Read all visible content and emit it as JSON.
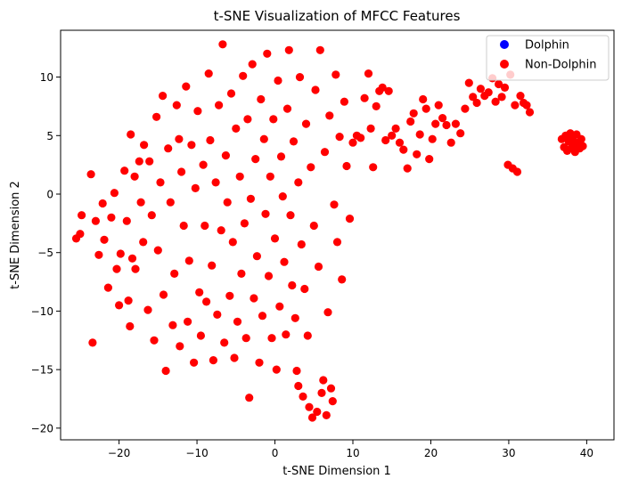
{
  "chart_data": {
    "type": "scatter",
    "title": "t-SNE Visualization of MFCC Features",
    "xlabel": "t-SNE Dimension 1",
    "ylabel": "t-SNE Dimension 2",
    "xlim": [
      -27.5,
      43.5
    ],
    "ylim": [
      -21.0,
      14.0
    ],
    "xticks": [
      -20,
      -10,
      0,
      10,
      20,
      30,
      40
    ],
    "yticks": [
      -20,
      -15,
      -10,
      -5,
      0,
      5,
      10
    ],
    "xtick_labels": [
      "−20",
      "−10",
      "0",
      "10",
      "20",
      "30",
      "40"
    ],
    "ytick_labels": [
      "−20",
      "−15",
      "−10",
      "−5",
      "0",
      "5",
      "10"
    ],
    "grid": false,
    "legend_position": "top-right",
    "series": [
      {
        "name": "Dolphin",
        "color": "#0000ff",
        "points": []
      },
      {
        "name": "Non-Dolphin",
        "color": "#ff0000",
        "points": [
          [
            -25.5,
            -3.8
          ],
          [
            -25.0,
            -3.4
          ],
          [
            -24.8,
            -1.8
          ],
          [
            -23.6,
            1.7
          ],
          [
            -23.4,
            -12.7
          ],
          [
            -23.0,
            -2.3
          ],
          [
            -22.6,
            -5.2
          ],
          [
            -22.1,
            -0.8
          ],
          [
            -21.9,
            -3.9
          ],
          [
            -21.4,
            -8.0
          ],
          [
            -21.0,
            -2.0
          ],
          [
            -20.6,
            0.1
          ],
          [
            -20.3,
            -6.4
          ],
          [
            -20.0,
            -9.5
          ],
          [
            -19.8,
            -5.1
          ],
          [
            -19.3,
            2.0
          ],
          [
            -19.0,
            -2.3
          ],
          [
            -18.8,
            -9.1
          ],
          [
            -18.6,
            -11.3
          ],
          [
            -18.3,
            -5.5
          ],
          [
            -18.5,
            5.1
          ],
          [
            -18.0,
            1.5
          ],
          [
            -17.9,
            -6.4
          ],
          [
            -17.4,
            2.8
          ],
          [
            -17.2,
            -0.7
          ],
          [
            -16.9,
            -4.1
          ],
          [
            -16.8,
            4.2
          ],
          [
            -16.3,
            -9.9
          ],
          [
            -16.1,
            2.8
          ],
          [
            -15.8,
            -1.8
          ],
          [
            -15.5,
            -12.5
          ],
          [
            -15.2,
            6.6
          ],
          [
            -15.0,
            -4.8
          ],
          [
            -14.7,
            1.0
          ],
          [
            -14.4,
            8.4
          ],
          [
            -14.3,
            -8.6
          ],
          [
            -14.0,
            -15.1
          ],
          [
            -13.7,
            3.9
          ],
          [
            -13.4,
            -0.7
          ],
          [
            -13.1,
            -11.2
          ],
          [
            -12.9,
            -6.8
          ],
          [
            -12.6,
            7.6
          ],
          [
            -12.3,
            4.7
          ],
          [
            -12.2,
            -13.0
          ],
          [
            -12.0,
            1.9
          ],
          [
            -11.7,
            -2.7
          ],
          [
            -11.4,
            9.2
          ],
          [
            -11.2,
            -10.9
          ],
          [
            -11.0,
            -5.7
          ],
          [
            -10.7,
            4.2
          ],
          [
            -10.4,
            -14.4
          ],
          [
            -10.2,
            0.5
          ],
          [
            -9.9,
            7.1
          ],
          [
            -9.7,
            -8.4
          ],
          [
            -9.5,
            -12.1
          ],
          [
            -9.2,
            2.5
          ],
          [
            -9.0,
            -2.7
          ],
          [
            -8.8,
            -9.2
          ],
          [
            -8.5,
            10.3
          ],
          [
            -8.3,
            4.6
          ],
          [
            -8.1,
            -6.1
          ],
          [
            -7.9,
            -14.2
          ],
          [
            -7.6,
            1.0
          ],
          [
            -7.4,
            -10.3
          ],
          [
            -7.2,
            7.6
          ],
          [
            -6.9,
            -3.1
          ],
          [
            -6.7,
            12.8
          ],
          [
            -6.5,
            -12.7
          ],
          [
            -6.3,
            3.3
          ],
          [
            -6.1,
            -0.7
          ],
          [
            -5.8,
            -8.7
          ],
          [
            -5.6,
            8.6
          ],
          [
            -5.4,
            -4.1
          ],
          [
            -5.2,
            -14.0
          ],
          [
            -5.0,
            5.6
          ],
          [
            -4.8,
            -10.9
          ],
          [
            -4.5,
            1.5
          ],
          [
            -4.3,
            -6.8
          ],
          [
            -4.1,
            10.1
          ],
          [
            -3.9,
            -2.5
          ],
          [
            -3.7,
            -12.3
          ],
          [
            -3.5,
            6.4
          ],
          [
            -3.3,
            -17.4
          ],
          [
            -3.1,
            -0.4
          ],
          [
            -2.9,
            11.1
          ],
          [
            -2.7,
            -8.9
          ],
          [
            -2.5,
            3.0
          ],
          [
            -2.3,
            -5.3
          ],
          [
            -2.0,
            -14.4
          ],
          [
            -1.8,
            8.1
          ],
          [
            -1.6,
            -10.4
          ],
          [
            -1.4,
            4.7
          ],
          [
            -1.2,
            -1.7
          ],
          [
            -1.0,
            12.0
          ],
          [
            -0.8,
            -7.0
          ],
          [
            -0.6,
            1.5
          ],
          [
            -0.4,
            -12.3
          ],
          [
            -0.2,
            6.4
          ],
          [
            0.0,
            -3.8
          ],
          [
            0.2,
            -15.0
          ],
          [
            0.4,
            9.7
          ],
          [
            0.6,
            -9.6
          ],
          [
            0.8,
            3.2
          ],
          [
            1.0,
            -0.2
          ],
          [
            1.2,
            -5.8
          ],
          [
            1.4,
            -12.0
          ],
          [
            1.6,
            7.3
          ],
          [
            1.8,
            12.3
          ],
          [
            2.0,
            -1.8
          ],
          [
            2.2,
            -7.8
          ],
          [
            2.4,
            4.5
          ],
          [
            2.6,
            -10.6
          ],
          [
            2.8,
            -15.1
          ],
          [
            3.0,
            -16.4
          ],
          [
            3.0,
            1.0
          ],
          [
            3.2,
            10.0
          ],
          [
            3.4,
            -4.3
          ],
          [
            3.6,
            -17.3
          ],
          [
            3.8,
            -8.1
          ],
          [
            4.0,
            6.0
          ],
          [
            4.2,
            -12.1
          ],
          [
            4.4,
            -18.2
          ],
          [
            4.6,
            2.3
          ],
          [
            4.8,
            -19.1
          ],
          [
            5.0,
            -2.7
          ],
          [
            5.2,
            8.9
          ],
          [
            5.4,
            -18.6
          ],
          [
            5.6,
            -6.2
          ],
          [
            5.8,
            12.3
          ],
          [
            6.0,
            -17.0
          ],
          [
            6.2,
            -15.9
          ],
          [
            6.4,
            3.6
          ],
          [
            6.6,
            -18.9
          ],
          [
            6.8,
            -10.1
          ],
          [
            7.0,
            6.7
          ],
          [
            7.2,
            -16.6
          ],
          [
            7.4,
            -17.7
          ],
          [
            7.6,
            -0.9
          ],
          [
            7.8,
            10.2
          ],
          [
            8.0,
            -4.1
          ],
          [
            8.3,
            4.9
          ],
          [
            8.6,
            -7.3
          ],
          [
            8.9,
            7.9
          ],
          [
            9.2,
            2.4
          ],
          [
            9.6,
            -2.1
          ],
          [
            10.0,
            4.4
          ],
          [
            10.5,
            5.0
          ],
          [
            11.0,
            4.8
          ],
          [
            11.5,
            8.2
          ],
          [
            12.0,
            10.3
          ],
          [
            12.3,
            5.6
          ],
          [
            12.6,
            2.3
          ],
          [
            13.0,
            7.5
          ],
          [
            13.4,
            8.8
          ],
          [
            13.8,
            9.1
          ],
          [
            14.2,
            4.6
          ],
          [
            14.6,
            8.8
          ],
          [
            15.0,
            5.0
          ],
          [
            15.5,
            5.6
          ],
          [
            16.0,
            4.4
          ],
          [
            16.5,
            3.8
          ],
          [
            17.0,
            2.2
          ],
          [
            17.4,
            6.2
          ],
          [
            17.8,
            6.9
          ],
          [
            18.2,
            3.4
          ],
          [
            18.6,
            5.1
          ],
          [
            19.0,
            8.1
          ],
          [
            19.4,
            7.3
          ],
          [
            19.8,
            3.0
          ],
          [
            20.2,
            4.7
          ],
          [
            20.6,
            6.0
          ],
          [
            21.0,
            7.6
          ],
          [
            21.5,
            6.5
          ],
          [
            22.0,
            5.9
          ],
          [
            22.6,
            4.4
          ],
          [
            23.2,
            6.0
          ],
          [
            23.8,
            5.2
          ],
          [
            24.4,
            7.3
          ],
          [
            24.9,
            9.5
          ],
          [
            25.4,
            8.3
          ],
          [
            25.9,
            7.8
          ],
          [
            26.4,
            9.0
          ],
          [
            26.9,
            8.4
          ],
          [
            27.4,
            8.7
          ],
          [
            27.9,
            9.9
          ],
          [
            28.3,
            7.9
          ],
          [
            28.7,
            9.4
          ],
          [
            29.1,
            8.3
          ],
          [
            29.5,
            9.1
          ],
          [
            29.9,
            2.5
          ],
          [
            30.2,
            10.2
          ],
          [
            30.5,
            2.2
          ],
          [
            30.8,
            7.6
          ],
          [
            31.1,
            1.9
          ],
          [
            31.5,
            8.4
          ],
          [
            31.9,
            7.8
          ],
          [
            32.3,
            7.6
          ],
          [
            32.7,
            7.0
          ],
          [
            36.8,
            4.7
          ],
          [
            37.1,
            4.0
          ],
          [
            37.3,
            5.0
          ],
          [
            37.5,
            3.7
          ],
          [
            37.7,
            4.5
          ],
          [
            37.9,
            5.2
          ],
          [
            38.0,
            3.9
          ],
          [
            38.2,
            4.8
          ],
          [
            38.4,
            4.2
          ],
          [
            38.5,
            3.6
          ],
          [
            38.7,
            5.1
          ],
          [
            38.9,
            4.4
          ],
          [
            39.1,
            3.9
          ],
          [
            39.3,
            4.7
          ],
          [
            39.5,
            4.1
          ]
        ]
      }
    ]
  }
}
